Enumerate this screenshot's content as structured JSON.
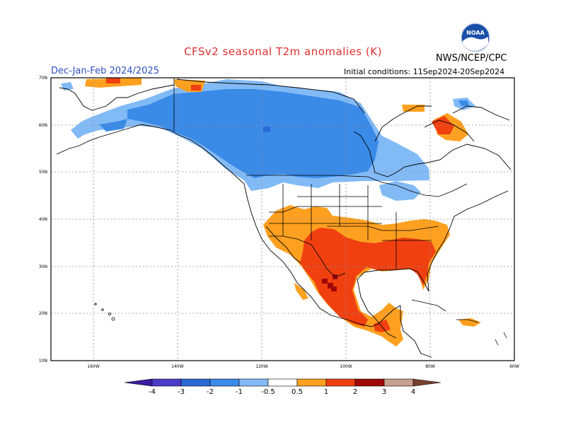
{
  "header": {
    "title": "CFSv2 seasonal T2m anomalies (K)",
    "season": "Dec-Jan-Feb 2024/2025",
    "initial_conditions": "Initial conditions: 11Sep2024-20Sep2024",
    "agency": "NWS/NCEP/CPC",
    "logo_text": "NOAA"
  },
  "map": {
    "lat_labels": [
      "70N",
      "60N",
      "50N",
      "40N",
      "30N",
      "20N",
      "10N"
    ],
    "lon_labels": [
      "160W",
      "140W",
      "120W",
      "100W",
      "80W",
      "60W"
    ]
  },
  "colorbar": {
    "labels": [
      "-4",
      "-3",
      "-2",
      "-1",
      "-0.5",
      "0.5",
      "1",
      "2",
      "3",
      "4"
    ],
    "colors": {
      "lt_-4": "#3a1ea0",
      "-4_-3": "#4a3cc8",
      "-3_-2": "#2a6ad6",
      "-2_-1": "#3a8ae8",
      "-1_-0.5": "#82baf6",
      "-0.5_0.5": "#ffffff",
      "0.5_1": "#ffa020",
      "1_2": "#f04010",
      "2_3": "#a00808",
      "3_4": "#c8a090",
      "gt_4": "#7a4030"
    }
  }
}
